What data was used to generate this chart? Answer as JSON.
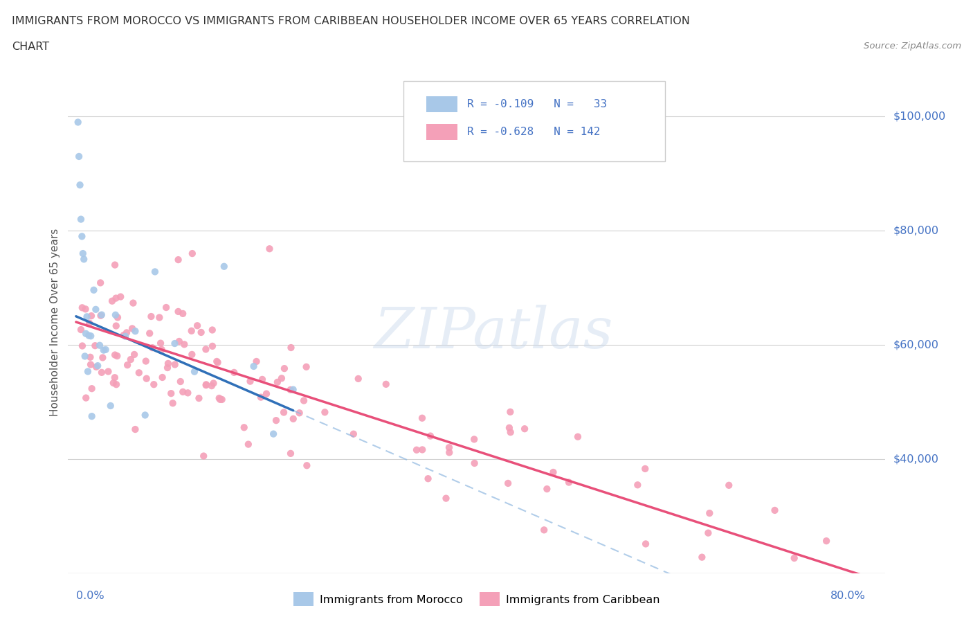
{
  "title_line1": "IMMIGRANTS FROM MOROCCO VS IMMIGRANTS FROM CARIBBEAN HOUSEHOLDER INCOME OVER 65 YEARS CORRELATION",
  "title_line2": "CHART",
  "source": "Source: ZipAtlas.com",
  "ylabel": "Householder Income Over 65 years",
  "morocco_color": "#a8c8e8",
  "caribbean_color": "#f4a0b8",
  "regression_morocco_color": "#3070b8",
  "regression_caribbean_color": "#e8507a",
  "dashed_line_color": "#90b8e0",
  "right_label_color": "#4472c4",
  "ytick_vals": [
    40000,
    60000,
    80000,
    100000
  ],
  "ytick_labels": [
    "$40,000",
    "$60,000",
    "$80,000",
    "$100,000"
  ],
  "watermark_text": "ZIPatlas",
  "morocco_seed": 7,
  "caribbean_seed": 13
}
